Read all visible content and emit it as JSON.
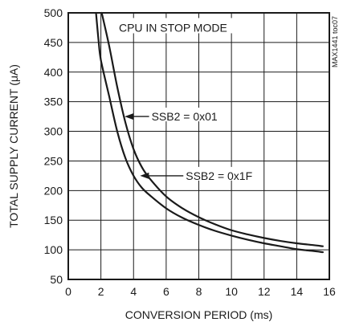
{
  "chart_data": {
    "type": "line",
    "title": "",
    "xlabel": "CONVERSION PERIOD (ms)",
    "ylabel": "TOTAL SUPPLY CURRENT (μA)",
    "xlim": [
      0,
      16
    ],
    "ylim": [
      50,
      500
    ],
    "xticks": [
      0,
      2,
      4,
      6,
      8,
      10,
      12,
      14,
      16
    ],
    "yticks": [
      50,
      100,
      150,
      200,
      250,
      300,
      350,
      400,
      450,
      500
    ],
    "grid": true,
    "series": [
      {
        "name": "SSB2 = 0x01",
        "points": [
          [
            2.05,
            500
          ],
          [
            2.5,
            445
          ],
          [
            3.0,
            375
          ],
          [
            3.5,
            315
          ],
          [
            4.0,
            270
          ],
          [
            4.5,
            240
          ],
          [
            5.0,
            220
          ],
          [
            6.0,
            190
          ],
          [
            7.0,
            170
          ],
          [
            8.0,
            155
          ],
          [
            9.0,
            143
          ],
          [
            10.0,
            133
          ],
          [
            11.0,
            126
          ],
          [
            12.0,
            120
          ],
          [
            13.0,
            115
          ],
          [
            14.0,
            111
          ],
          [
            15.0,
            108
          ],
          [
            15.6,
            106
          ]
        ]
      },
      {
        "name": "SSB2 = 0x1F",
        "points": [
          [
            1.7,
            500
          ],
          [
            1.85,
            455
          ],
          [
            2.0,
            420
          ],
          [
            2.5,
            360
          ],
          [
            3.0,
            300
          ],
          [
            3.5,
            255
          ],
          [
            4.0,
            225
          ],
          [
            4.5,
            205
          ],
          [
            5.0,
            192
          ],
          [
            6.0,
            170
          ],
          [
            7.0,
            154
          ],
          [
            8.0,
            142
          ],
          [
            9.0,
            132
          ],
          [
            10.0,
            124
          ],
          [
            11.0,
            117
          ],
          [
            12.0,
            111
          ],
          [
            13.0,
            106
          ],
          [
            14.0,
            101
          ],
          [
            15.0,
            98
          ],
          [
            15.6,
            96
          ]
        ]
      }
    ],
    "annotations": [
      {
        "text": "CPU IN STOP MODE",
        "x": 3.1,
        "y": 475,
        "anchor": "start"
      },
      {
        "text": "SSB2 = 0x01",
        "x": 5.1,
        "y": 325,
        "anchor": "start",
        "arrow_to": [
          3.45,
          325
        ]
      },
      {
        "text": "SSB2 = 0x1F",
        "x": 7.2,
        "y": 225,
        "anchor": "start",
        "arrow_to": [
          4.4,
          225
        ]
      }
    ],
    "side_code": "MAX1441 toc07"
  }
}
